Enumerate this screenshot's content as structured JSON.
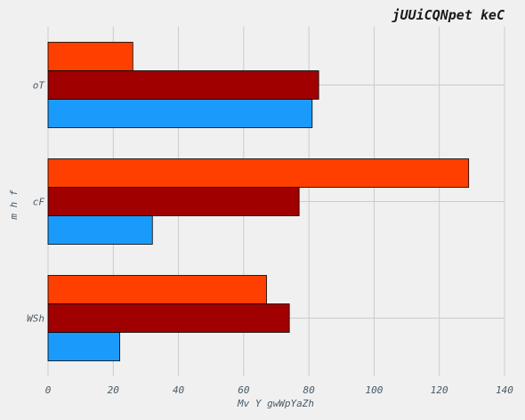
{
  "chart_data": {
    "type": "bar",
    "orientation": "horizontal",
    "title": "jUUiCQNpet keC",
    "xlabel": "Mv Y gwWpYaZh",
    "ylabel": "m h f",
    "categories": [
      "WSh",
      "cF",
      "oT"
    ],
    "xlim": [
      0,
      140
    ],
    "xticks": [
      0,
      20,
      40,
      60,
      80,
      100,
      120,
      140
    ],
    "grid": true,
    "legend": "none",
    "series": [
      {
        "color": "#1a9bfc",
        "values": [
          22,
          32,
          81
        ]
      },
      {
        "color": "#a10000",
        "values": [
          74,
          77,
          83
        ]
      },
      {
        "color": "#ff3f00",
        "values": [
          67,
          129,
          26
        ]
      }
    ]
  }
}
